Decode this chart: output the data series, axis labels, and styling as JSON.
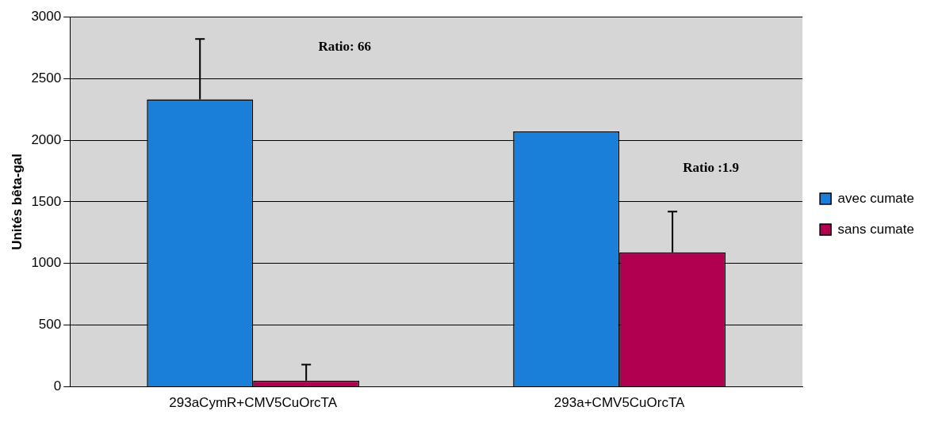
{
  "chart_data": {
    "type": "bar",
    "ylabel": "Unités bêta-gal",
    "categories": [
      "293aCymR+CMV5CuOrcTA",
      "293a+CMV5CuOrcTA"
    ],
    "series": [
      {
        "name": "avec cumate",
        "color": "#1a7fd8",
        "values": [
          2330,
          2070
        ],
        "errors": [
          [
            2330,
            2820
          ],
          null
        ]
      },
      {
        "name": "sans cumate",
        "color": "#b0004f",
        "values": [
          50,
          1090
        ],
        "errors": [
          [
            50,
            180
          ],
          [
            1090,
            1420
          ]
        ]
      }
    ],
    "annotations": [
      "Ratio: 66",
      "Ratio :1.9"
    ],
    "ylim": [
      0,
      3000
    ],
    "yticks": [
      0,
      500,
      1000,
      1500,
      2000,
      2500,
      3000
    ],
    "grid": "y",
    "legend": "right"
  }
}
